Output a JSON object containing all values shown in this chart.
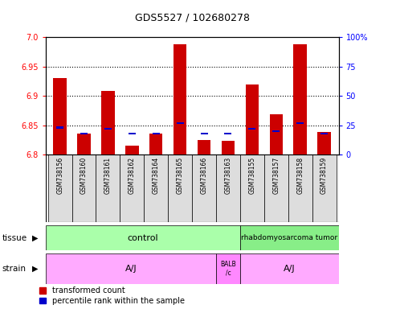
{
  "title": "GDS5527 / 102680278",
  "samples": [
    "GSM738156",
    "GSM738160",
    "GSM738161",
    "GSM738162",
    "GSM738164",
    "GSM738165",
    "GSM738166",
    "GSM738163",
    "GSM738155",
    "GSM738157",
    "GSM738158",
    "GSM738159"
  ],
  "red_values": [
    6.93,
    6.835,
    6.908,
    6.815,
    6.835,
    6.988,
    6.824,
    6.823,
    6.919,
    6.868,
    6.988,
    6.838
  ],
  "blue_percentiles": [
    23,
    18,
    22,
    18,
    18,
    27,
    18,
    18,
    22,
    20,
    27,
    18
  ],
  "y_min": 6.8,
  "y_max": 7.0,
  "y_ticks": [
    6.8,
    6.85,
    6.9,
    6.95,
    7.0
  ],
  "right_y_ticks": [
    0,
    25,
    50,
    75,
    100
  ],
  "right_y_tick_labels": [
    "0",
    "25",
    "50",
    "75",
    "100%"
  ],
  "grid_lines": [
    6.85,
    6.9,
    6.95
  ],
  "bar_color_red": "#cc0000",
  "bar_color_blue": "#0000cc",
  "tissue_control_label": "control",
  "tissue_tumor_label": "rhabdomyosarcoma tumor",
  "strain_aj_label": "A/J",
  "strain_balb_label": "BALB\n/c",
  "strain_aj2_label": "A/J",
  "tissue_control_color": "#aaffaa",
  "tissue_tumor_color": "#88ee88",
  "strain_color": "#ffaaff",
  "strain_balb_color": "#ff88ff",
  "legend_red": "transformed count",
  "legend_blue": "percentile rank within the sample",
  "bar_width": 0.55,
  "blue_bar_width": 0.3,
  "base_value": 6.8
}
